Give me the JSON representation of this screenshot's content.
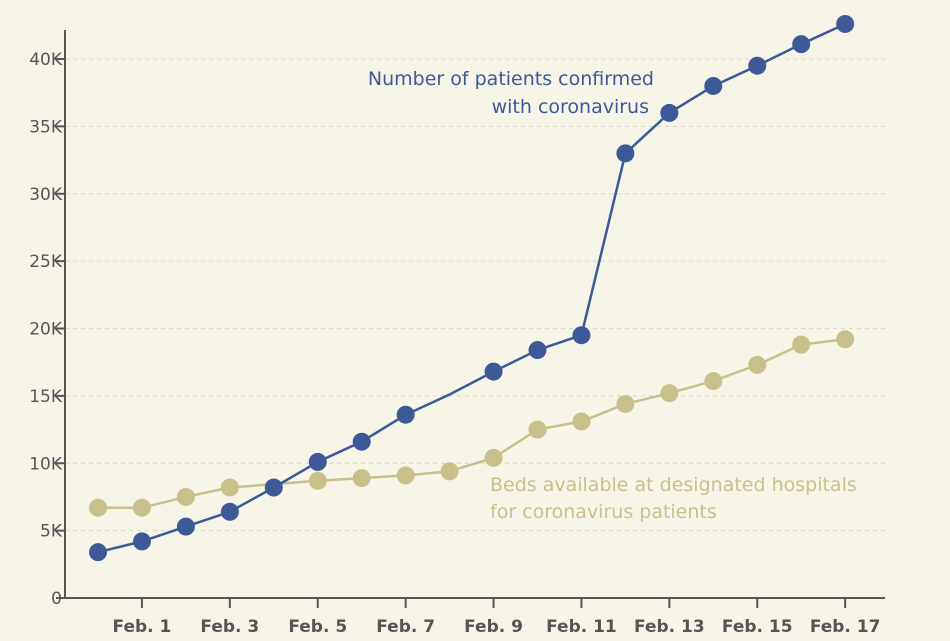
{
  "chart_data": {
    "type": "line",
    "title": "",
    "xlabel": "",
    "ylabel": "",
    "ylim": [
      0,
      42500
    ],
    "yticks": [
      0,
      5000,
      10000,
      15000,
      20000,
      25000,
      30000,
      35000,
      40000
    ],
    "ytick_labels": [
      "0",
      "5K",
      "10K",
      "15K",
      "20K",
      "25K",
      "30K",
      "35K",
      "40K"
    ],
    "x_labels": [
      "Feb. 1",
      "Feb. 3",
      "Feb. 5",
      "Feb. 7",
      "Feb. 9",
      "Feb. 11",
      "Feb. 13",
      "Feb. 15",
      "Feb. 17"
    ],
    "x": [
      "Jan. 31",
      "Feb. 1",
      "Feb. 2",
      "Feb. 3",
      "Feb. 4",
      "Feb. 5",
      "Feb. 6",
      "Feb. 7",
      "Feb. 8",
      "Feb. 9",
      "Feb. 10",
      "Feb. 11",
      "Feb. 12",
      "Feb. 13",
      "Feb. 14",
      "Feb. 15",
      "Feb. 16",
      "Feb. 17"
    ],
    "grid": true,
    "series": [
      {
        "name": "confirmed",
        "label_lines": [
          "Number of patients confirmed",
          "with coronavirus"
        ],
        "color": "#3d5a98",
        "values": [
          3400,
          4200,
          5300,
          6400,
          8200,
          10100,
          11600,
          13600,
          15100,
          16800,
          18400,
          19500,
          33000,
          36000,
          38000,
          39500,
          41100,
          42600
        ],
        "markers": [
          true,
          true,
          true,
          true,
          true,
          true,
          true,
          true,
          false,
          true,
          true,
          true,
          true,
          true,
          true,
          true,
          true,
          true
        ]
      },
      {
        "name": "beds",
        "label_lines": [
          "Beds available at designated hospitals",
          "for coronavirus patients"
        ],
        "color": "#c8c08a",
        "values": [
          6700,
          6700,
          7500,
          8200,
          null,
          8700,
          8900,
          9100,
          9400,
          10400,
          12500,
          13100,
          14400,
          15200,
          16100,
          17300,
          18800,
          19200
        ],
        "markers": [
          true,
          true,
          true,
          true,
          false,
          true,
          true,
          true,
          true,
          true,
          true,
          true,
          true,
          true,
          true,
          true,
          true,
          true
        ]
      }
    ]
  }
}
